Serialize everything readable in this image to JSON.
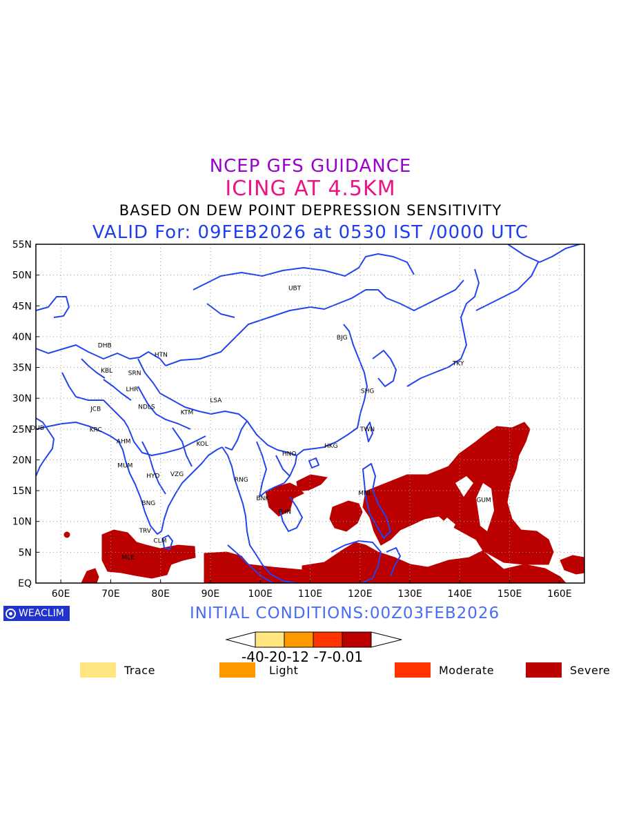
{
  "titles": {
    "line1": "NCEP GFS GUIDANCE",
    "line2": "ICING AT 4.5KM",
    "line3": "BASED ON DEW POINT DEPRESSION SENSITIVITY",
    "line4": "VALID For: 09FEB2026 at 0530 IST /0000 UTC"
  },
  "initial_conditions": "INITIAL CONDITIONS:00Z03FEB2026",
  "brand": {
    "name": "WEACLIM",
    "icon": "copyright-circle-icon"
  },
  "axes": {
    "lon_ticks": [
      "60E",
      "70E",
      "80E",
      "90E",
      "100E",
      "110E",
      "120E",
      "130E",
      "140E",
      "150E",
      "160E"
    ],
    "lon_values": [
      60,
      70,
      80,
      90,
      100,
      110,
      120,
      130,
      140,
      150,
      160
    ],
    "lat_ticks": [
      "EQ",
      "5N",
      "10N",
      "15N",
      "20N",
      "25N",
      "30N",
      "35N",
      "40N",
      "45N",
      "50N",
      "55N"
    ],
    "lat_values": [
      0,
      5,
      10,
      15,
      20,
      25,
      30,
      35,
      40,
      45,
      50,
      55
    ],
    "lon_range": [
      55,
      165
    ],
    "lat_range": [
      0,
      55
    ],
    "grid": "dotted"
  },
  "stations": [
    {
      "code": "UBT",
      "lon": 106.9,
      "lat": 47.9
    },
    {
      "code": "BJG",
      "lon": 116.4,
      "lat": 39.9
    },
    {
      "code": "TKY",
      "lon": 139.7,
      "lat": 35.7
    },
    {
      "code": "SHG",
      "lon": 121.5,
      "lat": 31.2
    },
    {
      "code": "TWN",
      "lon": 121.5,
      "lat": 25.0
    },
    {
      "code": "HKG",
      "lon": 114.2,
      "lat": 22.3
    },
    {
      "code": "HNO",
      "lon": 105.8,
      "lat": 21.0
    },
    {
      "code": "MNL",
      "lon": 121.0,
      "lat": 14.6
    },
    {
      "code": "GUM",
      "lon": 144.8,
      "lat": 13.5
    },
    {
      "code": "BNK",
      "lon": 100.5,
      "lat": 13.8
    },
    {
      "code": "PHN",
      "lon": 104.9,
      "lat": 11.6
    },
    {
      "code": "RNG",
      "lon": 96.2,
      "lat": 16.8
    },
    {
      "code": "LSA",
      "lon": 91.1,
      "lat": 29.7
    },
    {
      "code": "KTM",
      "lon": 85.3,
      "lat": 27.7
    },
    {
      "code": "KOL",
      "lon": 88.4,
      "lat": 22.6
    },
    {
      "code": "HTN",
      "lon": 80.1,
      "lat": 37.1
    },
    {
      "code": "DHB",
      "lon": 68.8,
      "lat": 38.6
    },
    {
      "code": "KBL",
      "lon": 69.2,
      "lat": 34.5
    },
    {
      "code": "SRN",
      "lon": 74.8,
      "lat": 34.1
    },
    {
      "code": "LHR",
      "lon": 74.3,
      "lat": 31.5
    },
    {
      "code": "NDLS",
      "lon": 77.2,
      "lat": 28.6
    },
    {
      "code": "JCB",
      "lon": 67.0,
      "lat": 28.3
    },
    {
      "code": "DUB",
      "lon": 55.3,
      "lat": 25.2
    },
    {
      "code": "KRC",
      "lon": 67.0,
      "lat": 24.9
    },
    {
      "code": "AHM",
      "lon": 72.6,
      "lat": 23.0
    },
    {
      "code": "MUM",
      "lon": 72.9,
      "lat": 19.1
    },
    {
      "code": "HYD",
      "lon": 78.5,
      "lat": 17.4
    },
    {
      "code": "VZG",
      "lon": 83.3,
      "lat": 17.7
    },
    {
      "code": "BNG",
      "lon": 77.6,
      "lat": 13.0
    },
    {
      "code": "TRV",
      "lon": 76.9,
      "lat": 8.5
    },
    {
      "code": "CLM",
      "lon": 79.9,
      "lat": 6.9
    },
    {
      "code": "MLE",
      "lon": 73.5,
      "lat": 4.2
    }
  ],
  "colorbar": {
    "labels": "-40-20-12 -7-0.01",
    "colors": [
      "#ffe680",
      "#ff9900",
      "#ff3300",
      "#bb0000"
    ]
  },
  "legend": [
    {
      "label": "Trace",
      "color": "#ffe680"
    },
    {
      "label": "Light",
      "color": "#ff9900"
    },
    {
      "label": "Moderate",
      "color": "#ff3300"
    },
    {
      "label": "Severe",
      "color": "#bb0000"
    }
  ],
  "colors": {
    "coast": "#2244ee",
    "severe": "#bb0000"
  }
}
